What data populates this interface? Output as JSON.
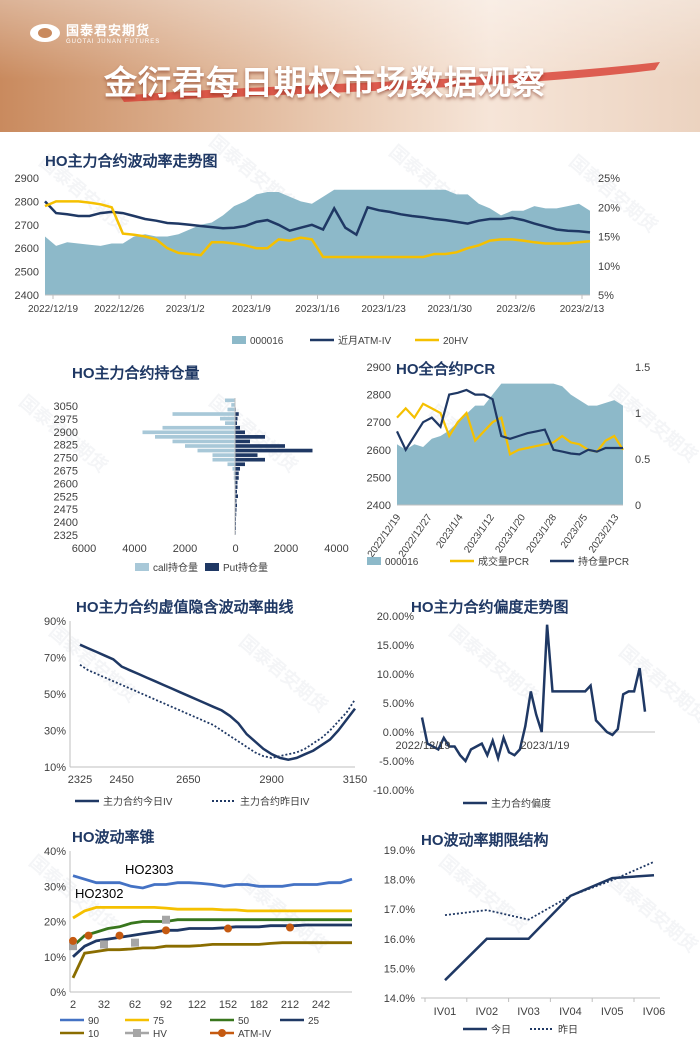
{
  "header": {
    "brand_cn": "国泰君安期货",
    "brand_en": "GUOTAI JUNAN FUTURES",
    "title": "金衍君每日期权市场数据观察",
    "watermark_text": "国泰君安期货"
  },
  "colors": {
    "navy": "#1f3864",
    "gold": "#f5c000",
    "teal_area": "#8db9c9",
    "light_blue_bar": "#a8c8d8",
    "blue": "#4472c4",
    "green": "#38761d",
    "brown": "#8a6d00",
    "grey": "#a6a6a6",
    "orange": "#c55a11"
  },
  "chart_data": [
    {
      "id": "vol_trend",
      "type": "line",
      "title": "HO主力合约波动率走势图",
      "x_ticks": [
        "2022/12/19",
        "2022/12/26",
        "2023/1/2",
        "2023/1/9",
        "2023/1/16",
        "2023/1/23",
        "2023/1/30",
        "2023/2/6",
        "2023/2/13"
      ],
      "ylim_left": [
        2400,
        2900
      ],
      "yticks_left": [
        2400,
        2500,
        2600,
        2700,
        2800,
        2900
      ],
      "ylim_right": [
        5,
        25
      ],
      "yticks_right": [
        "5%",
        "10%",
        "15%",
        "20%",
        "25%"
      ],
      "series": [
        {
          "name": "000016",
          "axis": "left",
          "style": "area",
          "values": [
            2650,
            2610,
            2625,
            2620,
            2615,
            2610,
            2620,
            2620,
            2650,
            2660,
            2650,
            2650,
            2660,
            2680,
            2700,
            2710,
            2740,
            2780,
            2800,
            2830,
            2840,
            2840,
            2820,
            2800,
            2790,
            2820,
            2850,
            2850,
            2850,
            2850,
            2850,
            2850,
            2850,
            2850,
            2850,
            2850,
            2850,
            2830,
            2830,
            2790,
            2770,
            2740,
            2760,
            2760,
            2780,
            2770,
            2770,
            2780,
            2790,
            2760
          ]
        },
        {
          "name": "近月ATM-IV",
          "axis": "right",
          "style": "line",
          "values": [
            21.0,
            19.0,
            18.8,
            18.5,
            18.5,
            19.0,
            19.2,
            19.0,
            18.5,
            18.0,
            17.7,
            17.3,
            17.2,
            17.0,
            16.8,
            16.6,
            16.4,
            16.5,
            16.8,
            17.5,
            17.8,
            17.0,
            16.0,
            16.5,
            17.0,
            16.2,
            19.8,
            16.5,
            15.3,
            20.0,
            19.5,
            19.2,
            18.8,
            18.5,
            18.3,
            18.0,
            17.8,
            17.5,
            17.2,
            17.7,
            18.0,
            18.0,
            18.2,
            17.8,
            17.2,
            16.7,
            16.2,
            16.0,
            15.9,
            15.7
          ]
        },
        {
          "name": "20HV",
          "axis": "right",
          "style": "line",
          "values": [
            20.2,
            21.0,
            21.0,
            21.0,
            20.8,
            20.5,
            20.0,
            15.5,
            15.3,
            15.0,
            14.5,
            13.0,
            12.2,
            12.0,
            11.8,
            14.0,
            14.0,
            13.8,
            13.5,
            13.0,
            13.0,
            14.5,
            14.3,
            14.8,
            14.5,
            11.5,
            11.5,
            11.5,
            11.5,
            11.5,
            11.5,
            11.5,
            11.5,
            11.5,
            11.5,
            12.0,
            12.0,
            12.3,
            13.0,
            13.5,
            14.3,
            14.5,
            14.5,
            14.3,
            14.0,
            13.8,
            13.8,
            13.8,
            14.0,
            14.2
          ]
        }
      ]
    },
    {
      "id": "oi_by_strike",
      "type": "bar",
      "title": "HO主力合约持仓量",
      "y_ticks": [
        3050,
        2975,
        2900,
        2825,
        2750,
        2675,
        2600,
        2525,
        2475,
        2400,
        2325
      ],
      "x_ticks": [
        "6000",
        "4000",
        "2000",
        "0",
        "2000",
        "4000"
      ],
      "xlim": [
        -6000,
        4000
      ],
      "strikes": [
        3050,
        3025,
        3000,
        2975,
        2950,
        2925,
        2900,
        2875,
        2850,
        2825,
        2800,
        2775,
        2750,
        2725,
        2700,
        2675,
        2650,
        2625,
        2600,
        2575,
        2550,
        2525,
        2500,
        2475,
        2450,
        2425,
        2400,
        2375,
        2350,
        2325
      ],
      "series": [
        {
          "name": "call持仓量",
          "values": [
            400,
            150,
            300,
            2500,
            600,
            400,
            2900,
            3700,
            3200,
            2500,
            2000,
            1500,
            900,
            900,
            300,
            100,
            50,
            50,
            30,
            20,
            10,
            10,
            10,
            10,
            10,
            10,
            10,
            10,
            10,
            5
          ]
        },
        {
          "name": "Put持仓量",
          "values": [
            10,
            20,
            30,
            150,
            100,
            80,
            200,
            400,
            1200,
            600,
            2000,
            3100,
            900,
            1200,
            400,
            200,
            150,
            150,
            100,
            100,
            80,
            120,
            60,
            80,
            60,
            50,
            40,
            40,
            40,
            30
          ]
        }
      ]
    },
    {
      "id": "pcr",
      "type": "line",
      "title": "HO全合约PCR",
      "x_ticks": [
        "2022/12/19",
        "2022/12/27",
        "2023/1/4",
        "2023/1/12",
        "2023/1/20",
        "2023/1/28",
        "2023/2/5",
        "2023/2/13"
      ],
      "ylim_left": [
        2400,
        2900
      ],
      "yticks_left": [
        2400,
        2500,
        2600,
        2700,
        2800,
        2900
      ],
      "ylim_right": [
        0,
        1.5
      ],
      "yticks_right": [
        "0",
        "0.5",
        "1",
        "1.5"
      ],
      "series": [
        {
          "name": "000016",
          "axis": "left",
          "style": "area",
          "values": [
            2620,
            2600,
            2620,
            2610,
            2640,
            2650,
            2670,
            2700,
            2730,
            2760,
            2760,
            2800,
            2840,
            2840,
            2840,
            2840,
            2840,
            2840,
            2840,
            2830,
            2800,
            2780,
            2760,
            2760,
            2770,
            2780,
            2760
          ]
        },
        {
          "name": "成交量PCR",
          "axis": "right",
          "style": "line",
          "values": [
            0.95,
            1.05,
            0.95,
            1.1,
            1.05,
            1.0,
            0.75,
            0.9,
            1.0,
            0.7,
            0.8,
            0.9,
            0.95,
            0.55,
            0.6,
            0.62,
            0.64,
            0.66,
            0.68,
            0.75,
            0.68,
            0.66,
            0.6,
            0.58,
            0.7,
            0.75,
            0.6
          ]
        },
        {
          "name": "持仓量PCR",
          "axis": "right",
          "style": "line",
          "values": [
            0.8,
            0.6,
            0.75,
            0.9,
            0.95,
            0.85,
            1.2,
            1.22,
            1.25,
            1.2,
            1.2,
            1.15,
            0.75,
            0.72,
            0.75,
            0.78,
            0.8,
            0.82,
            0.6,
            0.58,
            0.56,
            0.55,
            0.6,
            0.58,
            0.62,
            0.62,
            0.62
          ]
        }
      ]
    },
    {
      "id": "smile",
      "type": "line",
      "title": "HO主力合约虚值隐含波动率曲线",
      "x_ticks": [
        "2325",
        "2450",
        "2650",
        "2900",
        "3150"
      ],
      "ylim": [
        10,
        90
      ],
      "yticks": [
        "10%",
        "30%",
        "50%",
        "70%",
        "90%"
      ],
      "strikes": [
        2325,
        2350,
        2375,
        2400,
        2425,
        2450,
        2475,
        2500,
        2525,
        2550,
        2575,
        2600,
        2625,
        2650,
        2675,
        2700,
        2725,
        2750,
        2775,
        2800,
        2825,
        2850,
        2875,
        2900,
        2925,
        2950,
        2975,
        3000,
        3025,
        3050,
        3075,
        3100,
        3125,
        3150
      ],
      "series": [
        {
          "name": "主力合约今日IV",
          "style": "solid",
          "values": [
            77,
            75,
            73,
            71,
            69,
            65,
            63,
            61,
            59,
            57,
            55,
            53,
            51,
            49,
            47,
            45,
            43,
            41,
            38,
            34,
            28,
            24,
            20,
            17,
            15,
            14,
            15,
            17,
            19,
            22,
            25,
            30,
            36,
            42
          ]
        },
        {
          "name": "主力合约昨日IV",
          "style": "dotted",
          "values": [
            66,
            63,
            61,
            59,
            57,
            55,
            53,
            51,
            49,
            47,
            45,
            43,
            41,
            39,
            37,
            35,
            33,
            30,
            27,
            24,
            21,
            18,
            16,
            15,
            16,
            17,
            18,
            20,
            23,
            26,
            30,
            35,
            40,
            47
          ]
        }
      ]
    },
    {
      "id": "skew",
      "type": "line",
      "title": "HO主力合约偏度走势图",
      "x_ticks": [
        "2022/12/19",
        "2023/1/19"
      ],
      "ylim": [
        -10,
        20
      ],
      "yticks": [
        "-10.00%",
        "-5.00%",
        "0.00%",
        "5.00%",
        "10.00%",
        "15.00%",
        "20.00%"
      ],
      "series": [
        {
          "name": "主力合约偏度",
          "values": [
            2.5,
            -2.0,
            -2.5,
            -3.0,
            -1.0,
            -2.5,
            -2.5,
            -4.0,
            -5.0,
            -3.0,
            -2.5,
            -2.0,
            -4.0,
            -1.5,
            -4.5,
            -1.0,
            -3.5,
            -4.0,
            -3.0,
            1.0,
            7.0,
            3.0,
            0.0,
            18.5,
            7.0,
            7.0,
            7.0,
            7.0,
            7.0,
            7.0,
            7.0,
            8.0,
            2.0,
            1.0,
            0.0,
            -0.5,
            0.5,
            6.5,
            7.0,
            7.0,
            11.0,
            3.5
          ]
        }
      ]
    },
    {
      "id": "vol_cone",
      "type": "line",
      "title": "HO波动率锥",
      "x_ticks": [
        "2",
        "32",
        "62",
        "92",
        "122",
        "152",
        "182",
        "212",
        "242"
      ],
      "ylim": [
        0,
        40
      ],
      "yticks": [
        "0%",
        "10%",
        "20%",
        "30%",
        "40%"
      ],
      "annotations": [
        "HO2303",
        "HO2302"
      ],
      "series": [
        {
          "name": "90",
          "values": [
            33,
            32,
            31,
            31,
            31,
            30,
            29.5,
            30.5,
            30.5,
            31,
            31,
            30.8,
            30.5,
            30,
            30.5,
            30.5,
            30,
            30,
            30,
            30.5,
            30.5,
            30.5,
            31,
            31,
            32
          ]
        },
        {
          "name": "75",
          "values": [
            21,
            23,
            24,
            24,
            24,
            24,
            24,
            24,
            23.8,
            23.5,
            23.5,
            23.5,
            23.5,
            23.3,
            23.3,
            23,
            23,
            23,
            23,
            23,
            23,
            23,
            23,
            23,
            23
          ]
        },
        {
          "name": "50",
          "values": [
            13,
            16,
            17,
            18,
            18.5,
            19.5,
            20,
            20,
            20,
            20.5,
            20.5,
            20.5,
            20.5,
            20.5,
            20.5,
            20.5,
            20.5,
            20.5,
            20.5,
            20.5,
            20.5,
            20.5,
            20.5,
            20.5,
            20.5
          ]
        },
        {
          "name": "25",
          "values": [
            10,
            13,
            14.5,
            15,
            15.5,
            16,
            16.5,
            17,
            17.5,
            17.5,
            18,
            18,
            18,
            18.2,
            18.5,
            18.5,
            18.5,
            18.8,
            18.8,
            18.8,
            19,
            19,
            19,
            19,
            19
          ]
        },
        {
          "name": "10",
          "values": [
            4,
            11,
            11.5,
            12,
            12,
            12.2,
            12.5,
            12.5,
            13,
            13,
            13,
            13.2,
            13.5,
            13.5,
            13.5,
            13.5,
            13.5,
            13.8,
            14,
            14,
            14,
            14,
            14,
            14,
            14
          ]
        },
        {
          "name": "HV",
          "style": "markers_square",
          "x": [
            2,
            32,
            62,
            92
          ],
          "values": [
            13,
            13.5,
            14,
            20.5
          ]
        },
        {
          "name": "ATM-IV",
          "style": "markers_circle",
          "x": [
            2,
            17,
            47,
            92,
            152,
            212
          ],
          "values": [
            14.5,
            16,
            16,
            17.5,
            18,
            18.3
          ]
        }
      ]
    },
    {
      "id": "term_structure",
      "type": "line",
      "title": "HO波动率期限结构",
      "categories": [
        "IV01",
        "IV02",
        "IV03",
        "IV04",
        "IV05",
        "IV06"
      ],
      "ylim": [
        14.0,
        19.0
      ],
      "yticks": [
        "14.0%",
        "15.0%",
        "16.0%",
        "17.0%",
        "18.0%",
        "19.0%"
      ],
      "series": [
        {
          "name": "今日",
          "style": "solid",
          "values": [
            14.6,
            16.0,
            16.0,
            17.45,
            18.05,
            18.15
          ]
        },
        {
          "name": "昨日",
          "style": "dotted",
          "values": [
            16.8,
            16.97,
            16.65,
            17.45,
            17.98,
            18.6
          ]
        }
      ]
    }
  ]
}
